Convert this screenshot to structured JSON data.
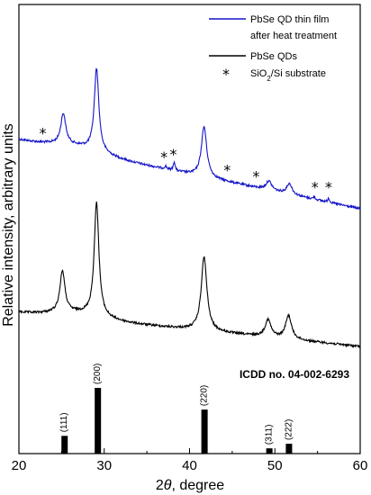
{
  "chart_data": {
    "type": "line",
    "xlabel_prefix": "2",
    "xlabel_symbol": "θ",
    "xlabel_suffix": ", degree",
    "ylabel": "Relative intensity, arbitrary units",
    "xlim": [
      20,
      60
    ],
    "x_ticks": [
      "20",
      "30",
      "40",
      "50",
      "60"
    ],
    "grid": false,
    "legend": {
      "placement": "top-right",
      "entries": [
        {
          "line1": "PbSe QD thin film",
          "line2": "after heat treatment",
          "color": "#1414c8",
          "marker": "line"
        },
        {
          "line1": "PbSe QDs",
          "line2": "",
          "color": "#000000",
          "marker": "line"
        },
        {
          "line1": "SiO2/Si substrate",
          "line2": "",
          "color": "#000000",
          "marker": "*"
        }
      ]
    },
    "series": [
      {
        "name": "PbSe QD thin film after heat treatment",
        "color": "#1414c8",
        "peaks": [
          {
            "x": 25.2,
            "height": 34,
            "width": 0.35
          },
          {
            "x": 29.1,
            "height": 92,
            "width": 0.32
          },
          {
            "x": 37.2,
            "height": 3,
            "width": 0.15
          },
          {
            "x": 38.2,
            "height": 10,
            "width": 0.12
          },
          {
            "x": 41.7,
            "height": 56,
            "width": 0.38
          },
          {
            "x": 49.3,
            "height": 10,
            "width": 0.4
          },
          {
            "x": 51.7,
            "height": 12,
            "width": 0.38
          },
          {
            "x": 54.6,
            "height": 3,
            "width": 0.12
          },
          {
            "x": 56.3,
            "height": 5,
            "width": 0.12
          }
        ]
      },
      {
        "name": "PbSe QDs",
        "color": "#000000",
        "peaks": [
          {
            "x": 25.1,
            "height": 46,
            "width": 0.35
          },
          {
            "x": 29.1,
            "height": 126,
            "width": 0.33
          },
          {
            "x": 41.7,
            "height": 82,
            "width": 0.4
          },
          {
            "x": 49.2,
            "height": 19,
            "width": 0.42
          },
          {
            "x": 51.6,
            "height": 26,
            "width": 0.42
          }
        ]
      }
    ],
    "substrate_marks": [
      22.8,
      37.0,
      38.1,
      44.4,
      47.8,
      54.7,
      56.3
    ],
    "reference": {
      "label": "ICDD no. 04-002-6293",
      "lines": [
        {
          "x": 25.3,
          "rel": 0.27,
          "label": "(111)"
        },
        {
          "x": 29.2,
          "rel": 1.0,
          "label": "(200)"
        },
        {
          "x": 41.7,
          "rel": 0.67,
          "label": "(220)"
        },
        {
          "x": 49.3,
          "rel": 0.08,
          "label": "(311)"
        },
        {
          "x": 51.6,
          "rel": 0.15,
          "label": "(222)"
        }
      ]
    }
  }
}
